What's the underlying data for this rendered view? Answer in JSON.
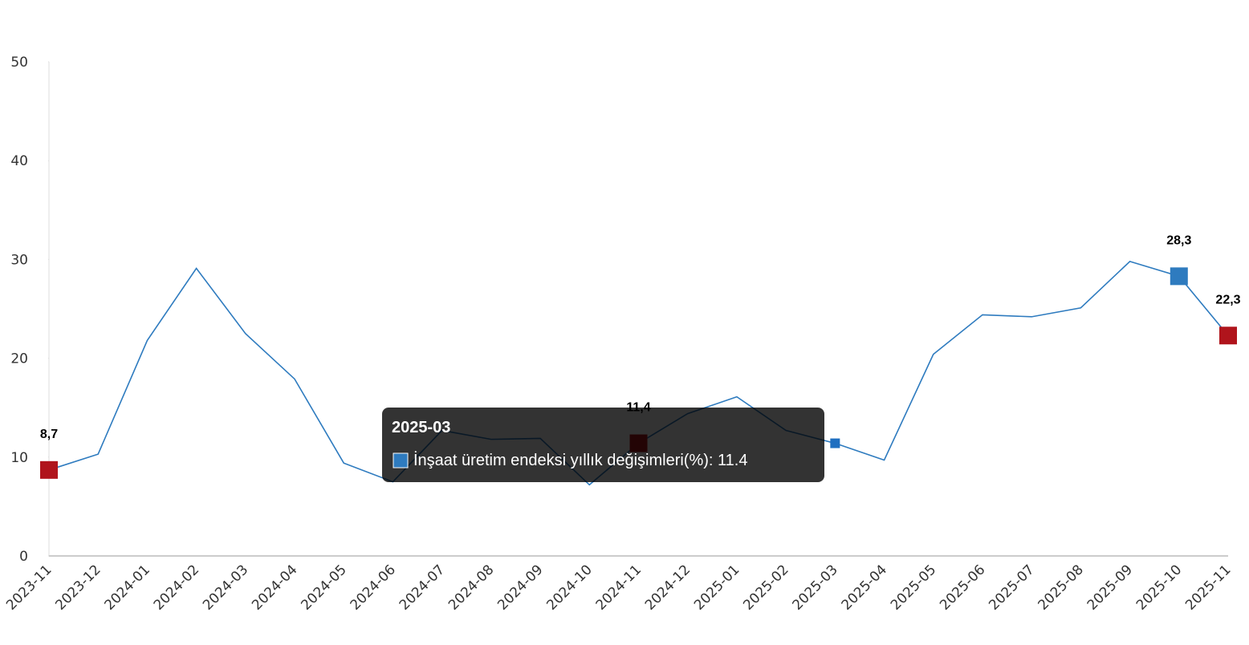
{
  "chart_data": {
    "type": "line",
    "categories": [
      "2023-11",
      "2023-12",
      "2024-01",
      "2024-02",
      "2024-03",
      "2024-04",
      "2024-05",
      "2024-06",
      "2024-07",
      "2024-08",
      "2024-09",
      "2024-10",
      "2024-11",
      "2024-12",
      "2025-01",
      "2025-02",
      "2025-03",
      "2025-04",
      "2025-05",
      "2025-06",
      "2025-07",
      "2025-08",
      "2025-09",
      "2025-10",
      "2025-11"
    ],
    "series": [
      {
        "name": "İnşaat üretim endeksi yıllık değişimleri(%)",
        "color": "#2e7bbf",
        "values": [
          8.7,
          10.3,
          21.8,
          29.1,
          22.5,
          17.9,
          9.4,
          7.5,
          12.7,
          11.8,
          11.9,
          7.2,
          11.4,
          14.4,
          16.1,
          12.7,
          11.4,
          9.7,
          20.4,
          24.4,
          24.2,
          25.1,
          29.8,
          28.3,
          22.3
        ],
        "value_labels": [
          "8,7",
          null,
          null,
          null,
          null,
          null,
          null,
          null,
          null,
          null,
          null,
          null,
          "11,4",
          null,
          null,
          null,
          null,
          null,
          null,
          null,
          null,
          null,
          null,
          "28,3",
          "22,3"
        ],
        "marker_colors": [
          "#b0141c",
          null,
          null,
          null,
          null,
          null,
          null,
          null,
          null,
          null,
          null,
          null,
          "#b0141c",
          null,
          null,
          null,
          null,
          null,
          null,
          null,
          null,
          null,
          null,
          "#2e7bbf",
          "#b0141c"
        ]
      }
    ],
    "ylim": [
      0,
      50
    ],
    "yticks": [
      0,
      10,
      20,
      30,
      40,
      50
    ],
    "tooltip": {
      "index": 16,
      "title": "2025-03",
      "text": "İnşaat üretim endeksi yıllık değişimleri(%): 11.4"
    }
  }
}
